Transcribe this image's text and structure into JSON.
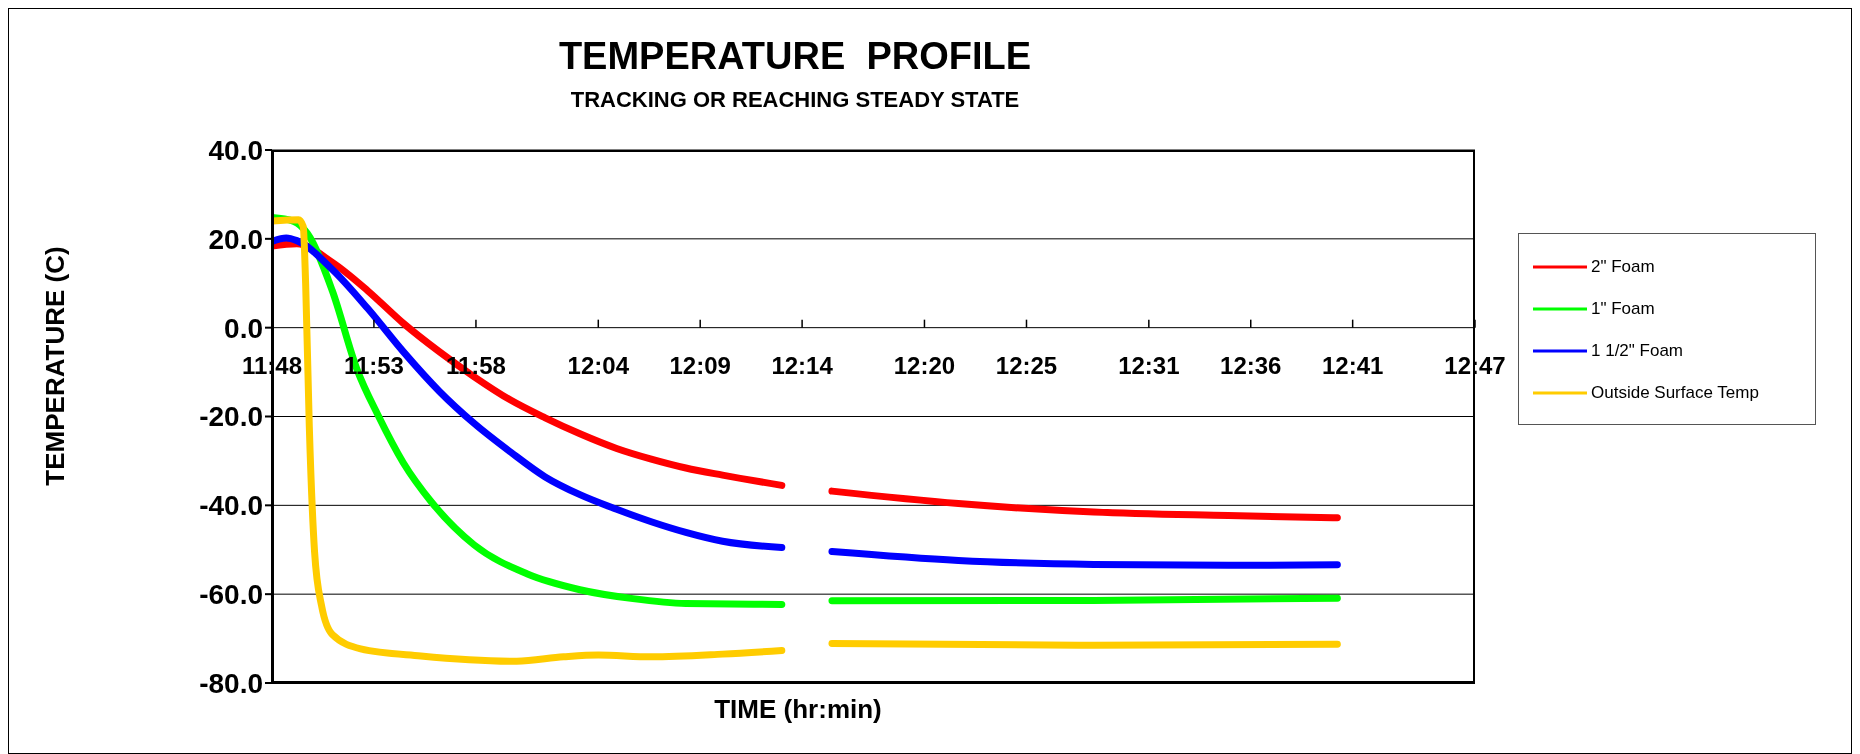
{
  "chart_data": {
    "type": "line",
    "title": "TEMPERATURE  PROFILE",
    "subtitle": "TRACKING OR REACHING STEADY STATE",
    "xlabel": "TIME (hr:min)",
    "ylabel": "TEMPERATURE (C)",
    "xlim": [
      11.8,
      12.7833
    ],
    "xticks": [
      {
        "value": 11.8,
        "label": "11:48"
      },
      {
        "value": 11.8833,
        "label": "11:53"
      },
      {
        "value": 11.9667,
        "label": "11:58"
      },
      {
        "value": 12.0667,
        "label": "12:04"
      },
      {
        "value": 12.15,
        "label": "12:09"
      },
      {
        "value": 12.2333,
        "label": "12:14"
      },
      {
        "value": 12.3333,
        "label": "12:20"
      },
      {
        "value": 12.4167,
        "label": "12:25"
      },
      {
        "value": 12.5167,
        "label": "12:31"
      },
      {
        "value": 12.6,
        "label": "12:36"
      },
      {
        "value": 12.6833,
        "label": "12:41"
      },
      {
        "value": 12.7833,
        "label": "12:47"
      }
    ],
    "ylim": [
      -80,
      40
    ],
    "yticks": [
      {
        "value": -80,
        "label": "-80.0"
      },
      {
        "value": -60,
        "label": "-60.0"
      },
      {
        "value": -40,
        "label": "-40.0"
      },
      {
        "value": -20,
        "label": "-20.0"
      },
      {
        "value": 0,
        "label": "0.0"
      },
      {
        "value": 20,
        "label": "20.0"
      },
      {
        "value": 40,
        "label": "40.0"
      }
    ],
    "grid": "y",
    "legend": "right",
    "series": [
      {
        "name": "2\" Foam",
        "color": "#ff0000",
        "x": [
          11.8,
          11.8203,
          11.8493,
          11.8783,
          11.9073,
          11.9367,
          11.965,
          11.995,
          12.0233,
          12.0517,
          12.0817,
          12.11,
          12.1383,
          12.1683,
          12.2167,
          12.2367,
          12.2577,
          12.361,
          12.4717,
          12.5817,
          12.6708
        ],
        "values": [
          18.4,
          18.9,
          14.7,
          8.3,
          1.0,
          -5.4,
          -11.0,
          -16.3,
          -20.3,
          -23.9,
          -27.2,
          -29.6,
          -31.6,
          -33.2,
          -35.5,
          null,
          -36.8,
          -39.6,
          -41.5,
          -42.3,
          -42.8
        ]
      },
      {
        "name": "1\" Foam",
        "color": "#00ff00",
        "x": [
          11.8,
          11.8173,
          11.829,
          11.8493,
          11.8695,
          11.887,
          11.9073,
          11.9305,
          11.9652,
          12.0083,
          12.0517,
          12.095,
          12.1383,
          12.2167,
          12.2367,
          12.2577,
          12.4717,
          12.6708
        ],
        "values": [
          24.8,
          24.0,
          21.2,
          8.3,
          -9.4,
          -19.9,
          -30.4,
          -39.3,
          -48.9,
          -55.4,
          -59.0,
          -61.0,
          -62.1,
          -62.3,
          null,
          -61.5,
          -61.4,
          -60.9
        ]
      },
      {
        "name": "1 1/2\" Foam",
        "color": "#0000ff",
        "x": [
          11.8,
          11.8117,
          11.8203,
          11.8493,
          11.8783,
          11.9073,
          11.9367,
          11.965,
          11.995,
          12.0233,
          12.0517,
          12.0817,
          12.11,
          12.1383,
          12.1683,
          12.2167,
          12.2367,
          12.2577,
          12.361,
          12.4717,
          12.5817,
          12.6708
        ],
        "values": [
          19.4,
          20.2,
          19.6,
          13.1,
          4.3,
          -5.4,
          -14.3,
          -21.5,
          -28.0,
          -33.6,
          -37.6,
          -40.9,
          -43.7,
          -46.1,
          -48.1,
          -49.5,
          null,
          -50.4,
          -52.4,
          -53.3,
          -53.5,
          -53.4
        ]
      },
      {
        "name": "Outside Surface Temp",
        "color": "#ffcc00",
        "x": [
          11.8,
          11.8217,
          11.8255,
          11.8275,
          11.8305,
          11.8348,
          11.8405,
          11.8493,
          11.8725,
          11.9217,
          12.0,
          12.0383,
          12.0667,
          12.11,
          12.1683,
          12.2167,
          12.2367,
          12.2577,
          12.4717,
          12.6708
        ],
        "values": [
          24.0,
          24.3,
          22.8,
          9.9,
          -22.3,
          -50.5,
          -62.6,
          -69.1,
          -72.3,
          -73.9,
          -75.1,
          -74.1,
          -73.7,
          -74.1,
          -73.5,
          -72.7,
          null,
          -71.1,
          -71.5,
          -71.3
        ]
      }
    ]
  }
}
